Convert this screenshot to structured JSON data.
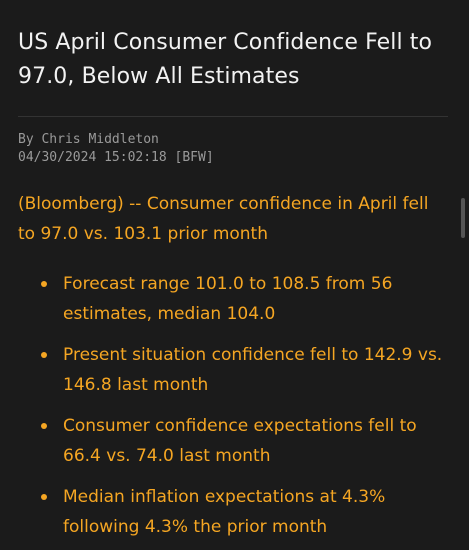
{
  "article": {
    "headline": "US April Consumer Confidence Fell to 97.0, Below All Estimates",
    "author": "By Chris Middleton",
    "timestamp": "04/30/2024 15:02:18 [BFW]",
    "lead": "(Bloomberg) -- Consumer confidence in April fell to 97.0 vs. 103.1 prior month",
    "bullets": [
      "Forecast range 101.0 to 108.5 from 56 estimates, median 104.0",
      "Present situation confidence fell to 142.9 vs. 146.8 last month",
      "Consumer confidence expectations fell to 66.4 vs. 74.0 last month",
      "Median inflation expectations at 4.3% following 4.3% the prior month"
    ]
  },
  "colors": {
    "background": "#1b1b1b",
    "headline": "#f2f2f2",
    "byline": "#9a9a9a",
    "accent": "#f5a623"
  }
}
